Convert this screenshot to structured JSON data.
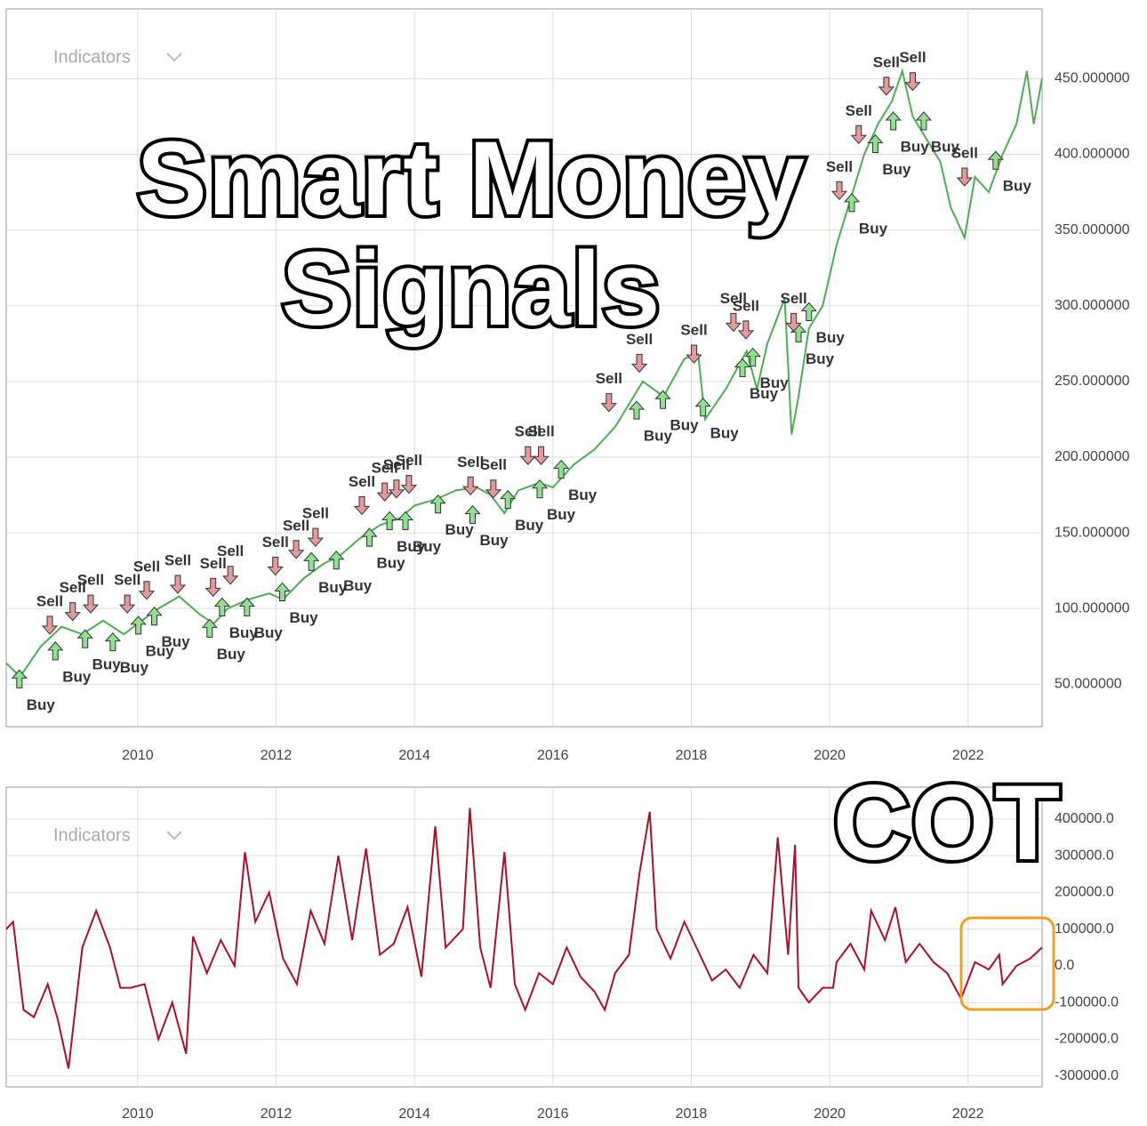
{
  "chart_data": [
    {
      "type": "line",
      "title": "Smart Money Signals",
      "indicators_label": "Indicators",
      "color": "#4caf50",
      "grid": true,
      "xlim": [
        2008.1,
        2023.07
      ],
      "ylim": [
        22,
        496
      ],
      "xticks": [
        2010,
        2012,
        2014,
        2016,
        2018,
        2020,
        2022
      ],
      "yticks": [
        {
          "value": 50,
          "label": "50.000000"
        },
        {
          "value": 100,
          "label": "100.000000"
        },
        {
          "value": 150,
          "label": "150.000000"
        },
        {
          "value": 200,
          "label": "200.000000"
        },
        {
          "value": 250,
          "label": "250.000000"
        },
        {
          "value": 300,
          "label": "300.000000"
        },
        {
          "value": 350,
          "label": "350.000000"
        },
        {
          "value": 400,
          "label": "400.000000"
        },
        {
          "value": 450,
          "label": "450.000000"
        }
      ],
      "x": [
        2008.1,
        2008.3,
        2008.6,
        2008.9,
        2009.2,
        2009.5,
        2009.8,
        2010.0,
        2010.3,
        2010.6,
        2010.9,
        2011.1,
        2011.3,
        2011.6,
        2011.9,
        2012.1,
        2012.4,
        2012.7,
        2012.9,
        2013.2,
        2013.5,
        2013.8,
        2014.0,
        2014.3,
        2014.6,
        2014.9,
        2015.1,
        2015.3,
        2015.5,
        2015.8,
        2016.0,
        2016.3,
        2016.6,
        2016.9,
        2017.1,
        2017.3,
        2017.6,
        2017.9,
        2018.1,
        2018.2,
        2018.5,
        2018.8,
        2018.95,
        2019.1,
        2019.35,
        2019.45,
        2019.55,
        2019.7,
        2019.9,
        2020.1,
        2020.3,
        2020.5,
        2020.7,
        2020.9,
        2021.05,
        2021.2,
        2021.4,
        2021.6,
        2021.75,
        2021.95,
        2022.1,
        2022.3,
        2022.5,
        2022.7,
        2022.85,
        2022.95,
        2023.07
      ],
      "values": [
        64,
        55,
        75,
        88,
        83,
        92,
        83,
        90,
        100,
        108,
        96,
        90,
        100,
        106,
        110,
        106,
        120,
        130,
        134,
        146,
        155,
        160,
        168,
        172,
        178,
        180,
        175,
        163,
        178,
        183,
        180,
        195,
        205,
        220,
        235,
        250,
        240,
        265,
        268,
        225,
        245,
        270,
        245,
        275,
        305,
        215,
        240,
        285,
        300,
        340,
        370,
        400,
        420,
        435,
        455,
        425,
        410,
        395,
        365,
        345,
        385,
        375,
        400,
        420,
        455,
        420,
        450
      ],
      "signals": [
        {
          "name": "Buy",
          "color": "#8fe08f",
          "x": [
            2008.29,
            2008.81,
            2009.24,
            2009.64,
            2010.01,
            2010.24,
            2011.04,
            2011.22,
            2011.58,
            2012.09,
            2012.51,
            2012.87,
            2013.35,
            2013.64,
            2013.87,
            2014.34,
            2014.84,
            2015.35,
            2015.81,
            2016.12,
            2017.21,
            2017.59,
            2018.17,
            2018.74,
            2018.89,
            2019.55,
            2019.7,
            2020.32,
            2020.66,
            2020.92,
            2021.36,
            2022.4
          ],
          "y": [
            53.5,
            72,
            80,
            78,
            89,
            95,
            87,
            101,
            101,
            111,
            131,
            132,
            147,
            158,
            158,
            169,
            162,
            172,
            179,
            192,
            231,
            238,
            233,
            259,
            266,
            282,
            296,
            368,
            407,
            422,
            422,
            396
          ]
        },
        {
          "name": "Sell",
          "color": "#e39a9a",
          "x": [
            2008.73,
            2009.06,
            2009.32,
            2009.85,
            2010.13,
            2010.58,
            2011.09,
            2011.34,
            2011.99,
            2012.29,
            2012.57,
            2013.24,
            2013.57,
            2013.74,
            2013.92,
            2014.81,
            2015.14,
            2015.64,
            2015.83,
            2016.81,
            2017.25,
            2018.04,
            2018.61,
            2018.79,
            2019.48,
            2020.14,
            2020.42,
            2020.82,
            2021.2,
            2021.95
          ],
          "y": [
            89,
            98,
            103,
            103,
            112,
            116,
            114,
            122,
            128,
            139,
            147,
            168,
            177,
            179,
            182,
            181,
            179,
            201,
            201,
            236,
            262,
            268,
            289,
            284,
            289,
            376,
            413,
            445,
            448,
            385
          ]
        }
      ]
    },
    {
      "type": "line",
      "title": "COT",
      "indicators_label": "Indicators",
      "color": "#a8102e",
      "grid": true,
      "xlim": [
        2008.1,
        2023.07
      ],
      "ylim": [
        -330000,
        487000
      ],
      "xticks": [
        2010,
        2012,
        2014,
        2016,
        2018,
        2020,
        2022
      ],
      "yticks": [
        {
          "value": -300000,
          "label": "-300000.0"
        },
        {
          "value": -200000,
          "label": "-200000.0"
        },
        {
          "value": -100000,
          "label": "-100000.0"
        },
        {
          "value": 0,
          "label": "0.0"
        },
        {
          "value": 100000,
          "label": "100000.0"
        },
        {
          "value": 200000,
          "label": "200000.0"
        },
        {
          "value": 300000,
          "label": "300000.0"
        },
        {
          "value": 400000,
          "label": "400000.0"
        }
      ],
      "x": [
        2008.1,
        2008.2,
        2008.35,
        2008.5,
        2008.7,
        2008.85,
        2009.0,
        2009.2,
        2009.4,
        2009.6,
        2009.75,
        2009.9,
        2010.1,
        2010.3,
        2010.5,
        2010.7,
        2010.8,
        2011.0,
        2011.2,
        2011.4,
        2011.55,
        2011.7,
        2011.9,
        2012.1,
        2012.3,
        2012.5,
        2012.7,
        2012.9,
        2013.1,
        2013.3,
        2013.5,
        2013.7,
        2013.9,
        2014.1,
        2014.3,
        2014.45,
        2014.7,
        2014.8,
        2014.95,
        2015.1,
        2015.3,
        2015.45,
        2015.6,
        2015.8,
        2016.0,
        2016.2,
        2016.4,
        2016.6,
        2016.75,
        2016.9,
        2017.1,
        2017.25,
        2017.4,
        2017.5,
        2017.7,
        2017.9,
        2018.1,
        2018.3,
        2018.5,
        2018.7,
        2018.9,
        2019.1,
        2019.25,
        2019.4,
        2019.5,
        2019.55,
        2019.7,
        2019.9,
        2020.05,
        2020.1,
        2020.3,
        2020.5,
        2020.6,
        2020.8,
        2020.95,
        2021.1,
        2021.3,
        2021.5,
        2021.7,
        2021.9,
        2022.1,
        2022.3,
        2022.45,
        2022.5,
        2022.7,
        2022.9,
        2023.07
      ],
      "values": [
        100000,
        120000,
        -120000,
        -140000,
        -50000,
        -150000,
        -280000,
        50000,
        150000,
        50000,
        -60000,
        -60000,
        -50000,
        -200000,
        -100000,
        -240000,
        80000,
        -20000,
        70000,
        0,
        310000,
        120000,
        200000,
        20000,
        -50000,
        150000,
        60000,
        300000,
        70000,
        320000,
        30000,
        60000,
        160000,
        -30000,
        380000,
        50000,
        100000,
        430000,
        50000,
        -60000,
        310000,
        -50000,
        -120000,
        -20000,
        -50000,
        50000,
        -30000,
        -70000,
        -120000,
        -20000,
        30000,
        250000,
        420000,
        100000,
        20000,
        120000,
        40000,
        -40000,
        -10000,
        -60000,
        30000,
        -20000,
        350000,
        30000,
        330000,
        -60000,
        -100000,
        -60000,
        -60000,
        10000,
        60000,
        -10000,
        150000,
        70000,
        160000,
        10000,
        60000,
        10000,
        -20000,
        -90000,
        10000,
        -10000,
        30000,
        -50000,
        0,
        20000,
        50000
      ]
    }
  ]
}
